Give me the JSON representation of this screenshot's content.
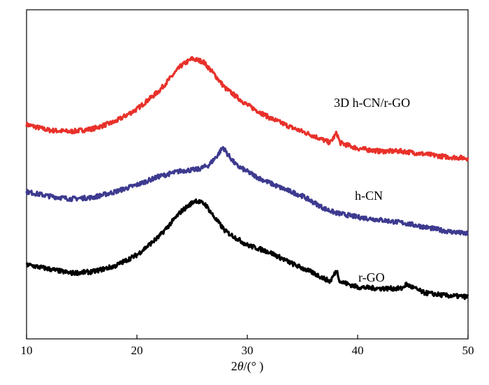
{
  "chart_data": {
    "type": "line",
    "title": "",
    "xlabel_prefix": "2",
    "xlabel_theta": "θ",
    "xlabel_suffix": "/(° )",
    "ylabel": "",
    "xlim": [
      10,
      50
    ],
    "ylim": [
      0,
      100
    ],
    "xticks": [
      10,
      20,
      30,
      40,
      50
    ],
    "yticks_visible": false,
    "grid": false,
    "legend": "inline labels beside curves",
    "series": [
      {
        "name": "3D h-CN/r-GO",
        "color": "#e8312a",
        "points": [
          [
            10,
            69
          ],
          [
            12,
            67
          ],
          [
            14,
            66.5
          ],
          [
            16,
            67.5
          ],
          [
            18,
            70
          ],
          [
            20,
            74.5
          ],
          [
            22,
            81
          ],
          [
            24,
            90
          ],
          [
            25,
            92.5
          ],
          [
            26,
            91.5
          ],
          [
            27,
            87
          ],
          [
            28,
            82
          ],
          [
            30,
            76
          ],
          [
            32,
            71.5
          ],
          [
            34,
            68
          ],
          [
            36,
            65
          ],
          [
            37.5,
            62.5
          ],
          [
            38.1,
            66
          ],
          [
            38.4,
            62.5
          ],
          [
            40,
            60.5
          ],
          [
            42,
            59.5
          ],
          [
            44,
            59.5
          ],
          [
            46,
            58.5
          ],
          [
            48,
            57.5
          ],
          [
            50,
            57
          ]
        ]
      },
      {
        "name": "h-CN",
        "color": "#3d3a8f",
        "points": [
          [
            10,
            45
          ],
          [
            12,
            43.5
          ],
          [
            14,
            42.5
          ],
          [
            16,
            43
          ],
          [
            18,
            45
          ],
          [
            20,
            47.5
          ],
          [
            22,
            50.5
          ],
          [
            24,
            52.5
          ],
          [
            25.5,
            53
          ],
          [
            26.5,
            54.5
          ],
          [
            27.3,
            58
          ],
          [
            27.8,
            61
          ],
          [
            28.2,
            58.5
          ],
          [
            29,
            54.5
          ],
          [
            31,
            50
          ],
          [
            33,
            46.5
          ],
          [
            35,
            43.5
          ],
          [
            37,
            39
          ],
          [
            38,
            37.5
          ],
          [
            40,
            36
          ],
          [
            42,
            35
          ],
          [
            44,
            34
          ],
          [
            46,
            32.5
          ],
          [
            48,
            31
          ],
          [
            50,
            30
          ]
        ]
      },
      {
        "name": "r-GO",
        "color": "#000000",
        "points": [
          [
            10,
            19
          ],
          [
            12,
            17.5
          ],
          [
            14,
            16
          ],
          [
            16,
            16.5
          ],
          [
            18,
            18.5
          ],
          [
            20,
            22.5
          ],
          [
            22,
            29
          ],
          [
            24,
            38
          ],
          [
            25.3,
            42
          ],
          [
            26.2,
            40.5
          ],
          [
            27,
            36
          ],
          [
            28,
            31
          ],
          [
            30,
            26
          ],
          [
            32,
            23.5
          ],
          [
            34,
            19.5
          ],
          [
            36,
            16
          ],
          [
            37.5,
            13
          ],
          [
            38.1,
            17
          ],
          [
            38.4,
            13
          ],
          [
            40,
            11
          ],
          [
            42,
            10.5
          ],
          [
            44,
            10.5
          ],
          [
            44.4,
            12
          ],
          [
            46,
            9
          ],
          [
            48,
            8
          ],
          [
            50,
            7.5
          ]
        ]
      }
    ],
    "labels": [
      {
        "text": "3D h-CN/r-GO",
        "series": "3D h-CN/r-GO"
      },
      {
        "text": "h-CN",
        "series": "h-CN"
      },
      {
        "text": "r-GO",
        "series": "r-GO"
      }
    ]
  }
}
